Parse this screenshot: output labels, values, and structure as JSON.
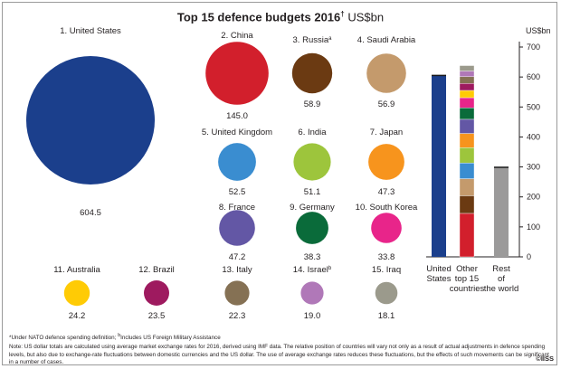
{
  "title": {
    "main": "Top 15 defence budgets 2016",
    "dagger": "†",
    "unit": "US$bn"
  },
  "chart_data": [
    {
      "type": "bubble",
      "countries": [
        {
          "rank": "1.",
          "name": "United States",
          "value": 604.5,
          "color": "#1b3f8c"
        },
        {
          "rank": "2.",
          "name": "China",
          "value": 145.0,
          "value_label": "145.0",
          "color": "#d21f2c"
        },
        {
          "rank": "3.",
          "name": "Russia",
          "marker": "a",
          "value": 58.9,
          "color": "#6b3a12"
        },
        {
          "rank": "4.",
          "name": "Saudi Arabia",
          "value": 56.9,
          "color": "#c49a6c"
        },
        {
          "rank": "5.",
          "name": "United Kingdom",
          "value": 52.5,
          "color": "#3a8dd0"
        },
        {
          "rank": "6.",
          "name": "India",
          "value": 51.1,
          "color": "#9dc53c"
        },
        {
          "rank": "7.",
          "name": "Japan",
          "value": 47.3,
          "color": "#f7941d"
        },
        {
          "rank": "8.",
          "name": "France",
          "value": 47.2,
          "color": "#6357a5"
        },
        {
          "rank": "9.",
          "name": "Germany",
          "value": 38.3,
          "color": "#0a6b3a"
        },
        {
          "rank": "10.",
          "name": "South Korea",
          "value": 33.8,
          "color": "#e8258a"
        },
        {
          "rank": "11.",
          "name": "Australia",
          "value": 24.2,
          "color": "#ffcb05"
        },
        {
          "rank": "12.",
          "name": "Brazil",
          "value": 23.5,
          "color": "#9e1a5f"
        },
        {
          "rank": "13.",
          "name": "Italy",
          "value": 22.3,
          "color": "#857154"
        },
        {
          "rank": "14.",
          "name": "Israel",
          "marker": "b",
          "value": 19.0,
          "color": "#b078b8"
        },
        {
          "rank": "15.",
          "name": "Iraq",
          "value": 18.1,
          "color": "#9b9a8c"
        }
      ]
    },
    {
      "type": "stacked_bar",
      "ylabel": "US$bn",
      "ylim": [
        0,
        700
      ],
      "yticks": [
        0,
        100,
        200,
        300,
        400,
        500,
        600,
        700
      ],
      "bars": [
        {
          "label": [
            "United",
            "States"
          ],
          "value": 604.5,
          "color": "#1b3f8c"
        },
        {
          "label": [
            "Other",
            "top 15",
            "countries"
          ],
          "value": 638.0,
          "stacked": true
        },
        {
          "label": [
            "Rest",
            "of",
            "the world"
          ],
          "value": 298.0,
          "color": "#9b9a9a"
        }
      ]
    }
  ],
  "notes": {
    "star": "*Under NATO defence spending definition; ",
    "star_b_marker": "b",
    "star_b": "Includes US Foreign Military Assistance",
    "main": "Note: US dollar totals are calculated using average market exchange rates for 2016, derived using IMF data. The relative position of countries will vary not only as a result of actual adjustments in defence spending levels, but also due to exchange-rate fluctuations between domestic currencies and the US dollar. The use of average exchange rates reduces these fluctuations, but the effects of such movements can be significant in a number of cases."
  },
  "copyright": "©IISS"
}
